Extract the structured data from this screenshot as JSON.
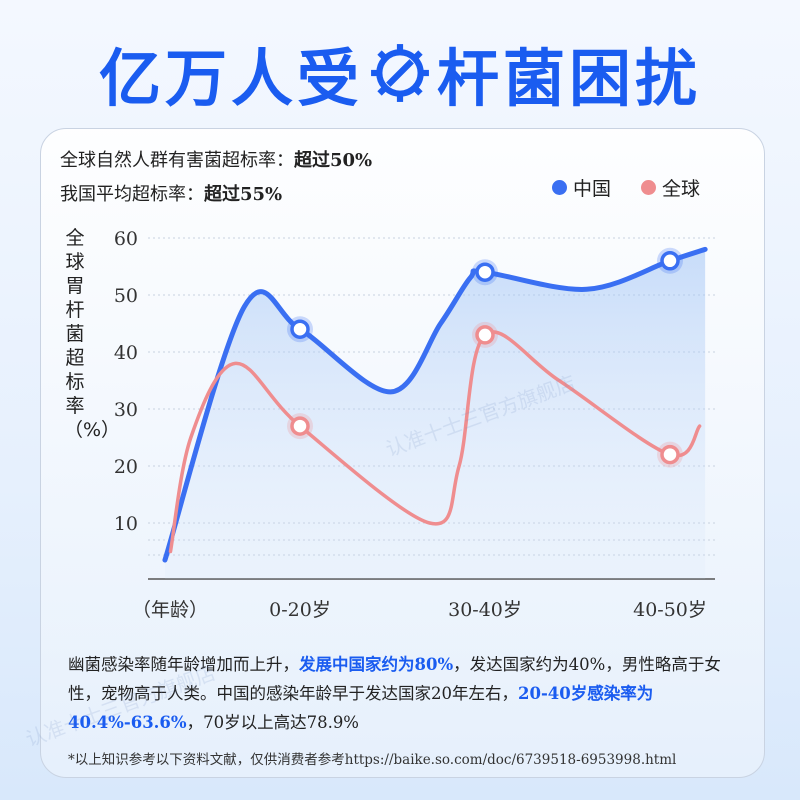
{
  "title_part1": "亿万人受",
  "title_part2": "杆菌困扰",
  "stats": [
    {
      "label": "全球自然人群有害菌超标率：",
      "value": "超过50%"
    },
    {
      "label": "我国平均超标率：",
      "value": "超过55%"
    }
  ],
  "watermark": "认准十士三官方旗舰店",
  "chart_data": {
    "type": "line",
    "ylabel": "全球胃杆菌超标率（%）",
    "xlabel": "（年龄）",
    "categories": [
      "0-20岁",
      "30-40岁",
      "40-50岁"
    ],
    "yticks": [
      "10",
      "20",
      "30",
      "40",
      "50",
      "60"
    ],
    "ylim": [
      0,
      65
    ],
    "grid": true,
    "legend": "top-right",
    "series": [
      {
        "name": "中国",
        "color": "#3a6ff2",
        "values": [
          44,
          54,
          56
        ],
        "curve": [
          [
            -0.73,
            3.5
          ],
          [
            -0.3,
            48
          ],
          [
            0,
            44
          ],
          [
            0.49,
            33
          ],
          [
            0.76,
            45
          ],
          [
            0.92,
            53
          ],
          [
            1,
            54
          ],
          [
            1.55,
            51
          ],
          [
            2,
            56
          ],
          [
            2.19,
            58
          ]
        ]
      },
      {
        "name": "全球",
        "color": "#ef8d8f",
        "values": [
          27,
          43,
          22
        ],
        "curve": [
          [
            -0.7,
            5
          ],
          [
            -0.59,
            25
          ],
          [
            -0.35,
            38
          ],
          [
            0,
            27
          ],
          [
            0.7,
            10
          ],
          [
            0.86,
            20
          ],
          [
            1,
            43
          ],
          [
            1.4,
            35
          ],
          [
            2,
            22
          ],
          [
            2.16,
            27
          ]
        ]
      }
    ]
  },
  "description": {
    "p1": "幽菌感染率随年龄增加而上升，",
    "h1": "发展中国家约为80%",
    "p2": "，发达国家约为40%，男性略高于女性，宠物高于人类。中国的感染年龄早于发达国家20年左右，",
    "h2": "20-40岁感染率为40.4%-63.6%",
    "p3": "，70岁以上高达78.9%"
  },
  "footnote": "*以上知识参考以下资料文献，仅供消费者参考https://baike.so.com/doc/6739518-6953998.html"
}
